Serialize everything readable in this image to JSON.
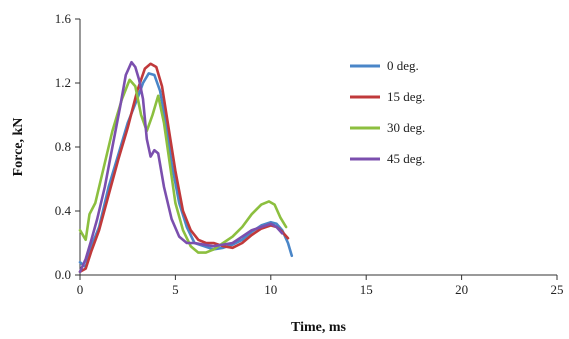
{
  "chart_data": {
    "type": "line",
    "title": "",
    "xlabel": "Time, ms",
    "ylabel": "Force, kN",
    "xlim": [
      0,
      25
    ],
    "ylim": [
      0.0,
      1.6
    ],
    "xticks": [
      0,
      5,
      10,
      15,
      20,
      25
    ],
    "yticks": [
      0.0,
      0.4,
      0.8,
      1.2,
      1.6
    ],
    "xtick_labels": [
      "0",
      "5",
      "10",
      "15",
      "20",
      "25"
    ],
    "ytick_labels": [
      "0.0",
      "0.4",
      "0.8",
      "1.2",
      "1.6"
    ],
    "grid": false,
    "legend_position": "upper-right inside plot",
    "series": [
      {
        "name": "0 deg.",
        "color": "#4A86C8",
        "x": [
          0.0,
          0.3,
          0.6,
          1.0,
          1.5,
          2.0,
          2.5,
          3.0,
          3.3,
          3.6,
          3.9,
          4.2,
          4.5,
          4.8,
          5.2,
          5.6,
          6.0,
          6.5,
          7.0,
          7.5,
          8.0,
          8.5,
          9.0,
          9.5,
          10.0,
          10.3,
          10.6,
          10.9,
          11.1
        ],
        "y": [
          0.08,
          0.05,
          0.18,
          0.3,
          0.55,
          0.75,
          0.95,
          1.1,
          1.2,
          1.26,
          1.25,
          1.15,
          0.95,
          0.7,
          0.45,
          0.3,
          0.2,
          0.18,
          0.16,
          0.17,
          0.19,
          0.22,
          0.27,
          0.31,
          0.33,
          0.32,
          0.28,
          0.2,
          0.12
        ]
      },
      {
        "name": "15 deg.",
        "color": "#C0393B",
        "x": [
          0.0,
          0.3,
          0.6,
          1.0,
          1.5,
          2.0,
          2.5,
          3.0,
          3.4,
          3.7,
          4.0,
          4.3,
          4.6,
          5.0,
          5.4,
          5.8,
          6.2,
          6.6,
          7.0,
          7.5,
          8.0,
          8.5,
          9.0,
          9.5,
          10.0,
          10.3,
          10.6,
          10.9
        ],
        "y": [
          0.02,
          0.04,
          0.15,
          0.28,
          0.5,
          0.72,
          0.92,
          1.15,
          1.29,
          1.32,
          1.3,
          1.18,
          0.95,
          0.65,
          0.4,
          0.28,
          0.22,
          0.2,
          0.2,
          0.18,
          0.17,
          0.2,
          0.25,
          0.29,
          0.31,
          0.3,
          0.27,
          0.23
        ]
      },
      {
        "name": "30 deg.",
        "color": "#8CBF3F",
        "x": [
          0.0,
          0.3,
          0.5,
          0.8,
          1.2,
          1.7,
          2.2,
          2.6,
          2.9,
          3.2,
          3.5,
          3.8,
          4.1,
          4.4,
          4.7,
          5.0,
          5.4,
          5.8,
          6.2,
          6.6,
          7.0,
          7.5,
          8.0,
          8.5,
          9.0,
          9.5,
          9.9,
          10.2,
          10.5,
          10.8
        ],
        "y": [
          0.28,
          0.22,
          0.38,
          0.45,
          0.65,
          0.9,
          1.1,
          1.22,
          1.18,
          1.0,
          0.9,
          1.0,
          1.12,
          0.95,
          0.7,
          0.45,
          0.28,
          0.18,
          0.14,
          0.14,
          0.16,
          0.2,
          0.24,
          0.3,
          0.38,
          0.44,
          0.46,
          0.44,
          0.36,
          0.3
        ]
      },
      {
        "name": "45 deg.",
        "color": "#7B4FAE",
        "x": [
          0.0,
          0.3,
          0.6,
          0.9,
          1.3,
          1.7,
          2.1,
          2.4,
          2.7,
          2.9,
          3.1,
          3.3,
          3.5,
          3.7,
          3.9,
          4.1,
          4.4,
          4.8,
          5.2,
          5.6,
          6.0,
          6.5,
          7.0,
          7.5,
          8.0,
          8.5,
          9.0,
          9.5,
          10.0,
          10.3,
          10.6
        ],
        "y": [
          0.02,
          0.1,
          0.22,
          0.35,
          0.55,
          0.8,
          1.05,
          1.25,
          1.33,
          1.3,
          1.22,
          1.1,
          0.85,
          0.74,
          0.78,
          0.76,
          0.55,
          0.35,
          0.24,
          0.2,
          0.2,
          0.19,
          0.18,
          0.19,
          0.2,
          0.24,
          0.28,
          0.3,
          0.32,
          0.3,
          0.26
        ]
      }
    ]
  }
}
